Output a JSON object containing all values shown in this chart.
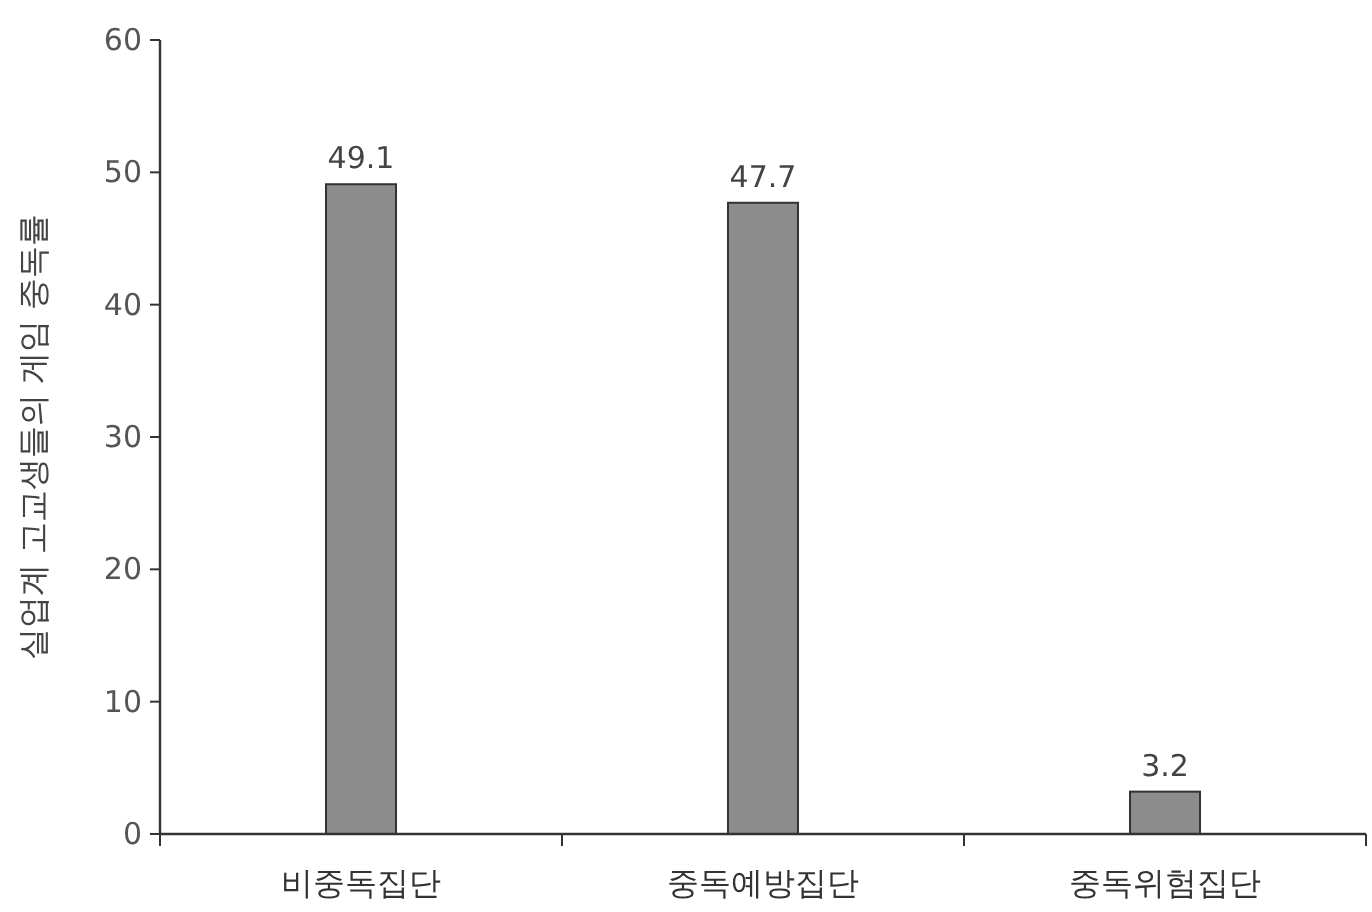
{
  "chart_data": {
    "type": "bar",
    "ylabel": "실업계 고교생들의 게임 중독률",
    "categories": [
      "비중독집단",
      "중독예방집단",
      "중독위험집단"
    ],
    "values": [
      49.1,
      47.7,
      3.2
    ],
    "color": "#8c8c8c",
    "ylim": [
      0,
      60
    ],
    "yticks": [
      0,
      10,
      20,
      30,
      40,
      50,
      60
    ],
    "data_labels": true
  }
}
